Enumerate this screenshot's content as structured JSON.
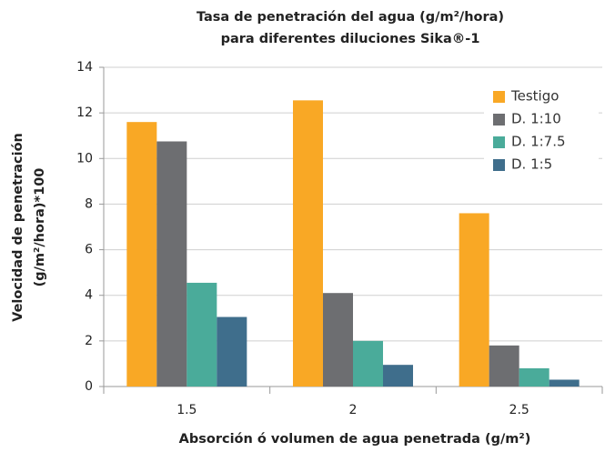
{
  "chart_data": {
    "type": "bar",
    "title": [
      "Tasa de penetración del agua (g/m²/hora)",
      "para diferentes diluciones Sika®-1"
    ],
    "x_label": "Absorción ó volumen de agua penetrada (g/m²)",
    "y_label": [
      "Velocidad de penetración",
      "(g/m²/hora)*100"
    ],
    "categories": [
      "1.5",
      "2",
      "2.5"
    ],
    "series": [
      {
        "name": "Testigo",
        "color": "#f9a825",
        "values": [
          11.6,
          12.55,
          7.6
        ]
      },
      {
        "name": "D. 1:10",
        "color": "#6d6e71",
        "values": [
          10.75,
          4.1,
          1.8
        ]
      },
      {
        "name": "D. 1:7.5",
        "color": "#4aab9a",
        "values": [
          4.55,
          2.0,
          0.8
        ]
      },
      {
        "name": "D. 1:5",
        "color": "#3f6e8c",
        "values": [
          3.05,
          0.95,
          0.3
        ]
      }
    ],
    "ylim": [
      0,
      14
    ],
    "yticks": [
      0,
      2,
      4,
      6,
      8,
      10,
      12,
      14
    ],
    "grid": true,
    "legend": "upper right"
  }
}
